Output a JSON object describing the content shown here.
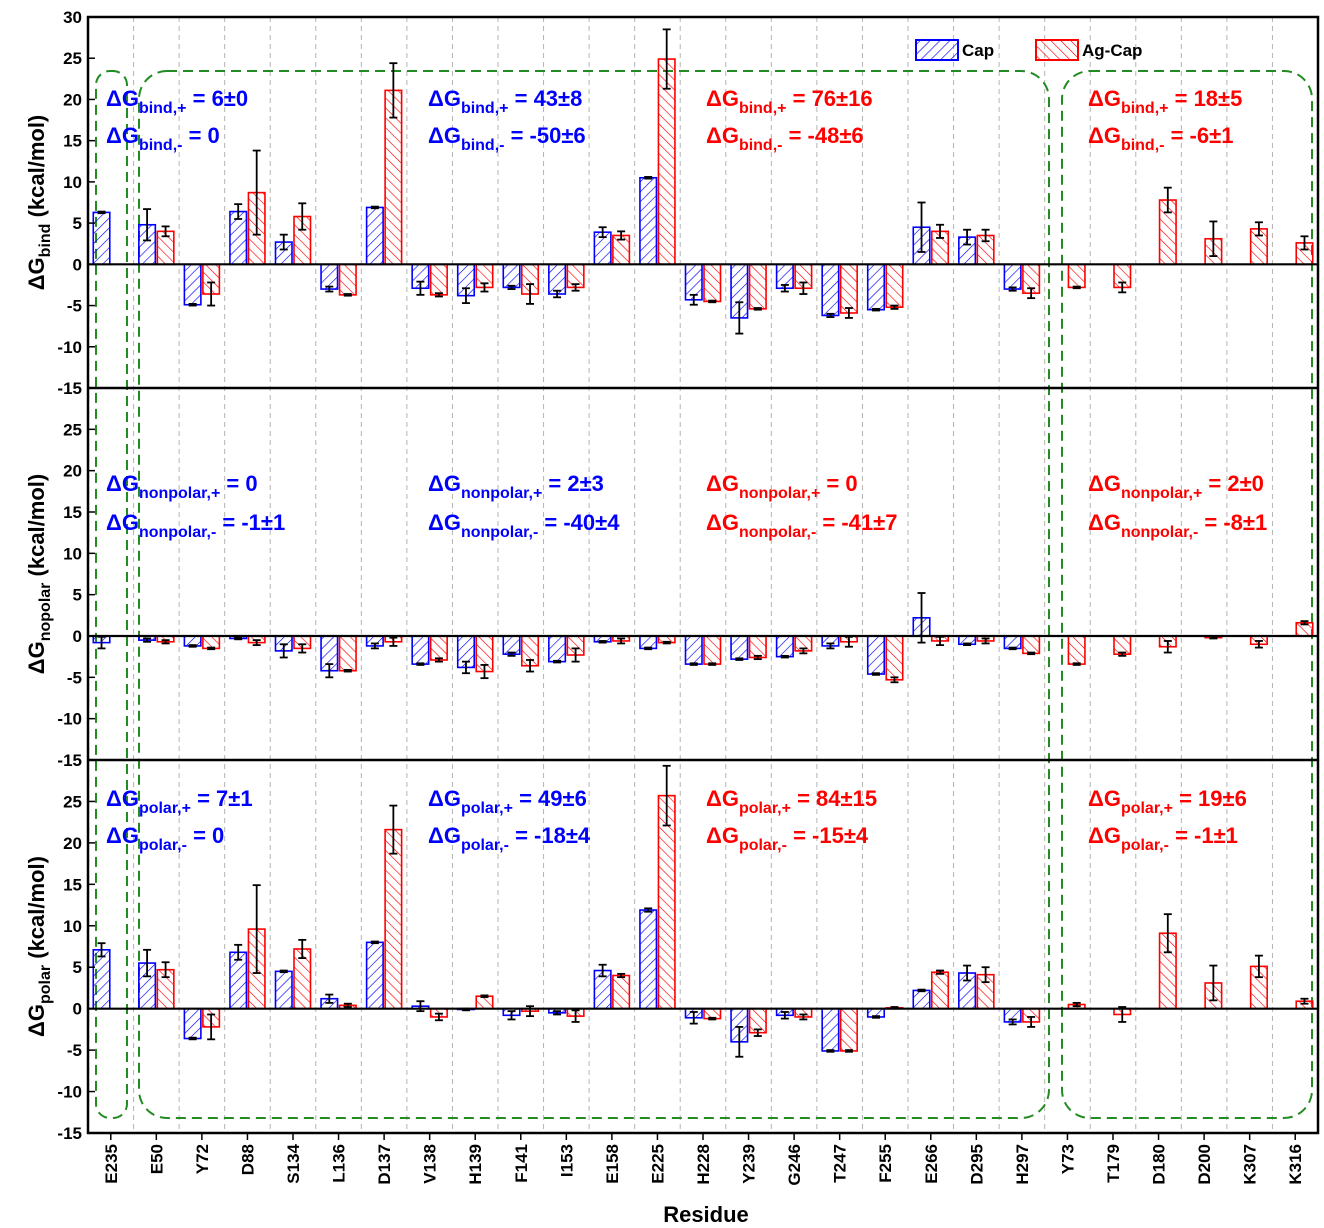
{
  "chart_data": {
    "type": "bar",
    "xlabel": "Residue",
    "categories": [
      "E235",
      "E50",
      "Y72",
      "D88",
      "S134",
      "L136",
      "D137",
      "V138",
      "H139",
      "F141",
      "I153",
      "E158",
      "E225",
      "H228",
      "Y239",
      "G246",
      "T247",
      "F255",
      "E266",
      "D295",
      "H297",
      "Y73",
      "T179",
      "D180",
      "D200",
      "K307",
      "K316"
    ],
    "legend": {
      "placement": "top-right",
      "entries": [
        {
          "name": "Cap",
          "color": "#0000ff"
        },
        {
          "name": "Ag-Cap",
          "color": "#ff0000"
        }
      ]
    },
    "groups": [
      {
        "name": "E235",
        "range": [
          0,
          0
        ]
      },
      {
        "name": "E50–H297",
        "range": [
          1,
          20
        ]
      },
      {
        "name": "Y73–K316",
        "range": [
          21,
          26
        ]
      }
    ],
    "panels": [
      {
        "id": "bind",
        "ylabel_main": "ΔG",
        "ylabel_sub": "bind",
        "ylabel_unit": " (kcal/mol)",
        "ylim": [
          -15,
          30
        ],
        "yticks": [
          -15,
          -10,
          -5,
          0,
          5,
          10,
          15,
          20,
          25,
          30
        ],
        "series": [
          {
            "name": "Cap",
            "values": [
              6.3,
              4.8,
              -4.9,
              6.4,
              2.7,
              -3.0,
              6.9,
              -2.9,
              -3.8,
              -2.8,
              -3.6,
              3.9,
              10.5,
              -4.3,
              -6.5,
              -2.9,
              -6.2,
              -5.5,
              4.5,
              3.3,
              -3.0,
              null,
              null,
              null,
              null,
              null,
              null
            ],
            "errors": [
              0.1,
              1.9,
              0.1,
              0.9,
              0.9,
              0.3,
              0.1,
              0.8,
              0.9,
              0.2,
              0.4,
              0.6,
              0.1,
              0.6,
              1.9,
              0.4,
              0.2,
              0.1,
              3.0,
              0.9,
              0.2,
              null,
              null,
              null,
              null,
              null,
              null
            ]
          },
          {
            "name": "Ag-Cap",
            "values": [
              null,
              4.0,
              -3.6,
              8.7,
              5.8,
              -3.7,
              21.1,
              -3.7,
              -2.8,
              -3.6,
              -2.8,
              3.5,
              24.9,
              -4.5,
              -5.4,
              -2.9,
              -5.9,
              -5.2,
              4.0,
              3.5,
              -3.5,
              -2.8,
              -2.8,
              7.8,
              3.1,
              4.3,
              2.6
            ],
            "errors": [
              null,
              0.6,
              1.4,
              5.1,
              1.6,
              0.1,
              3.3,
              0.2,
              0.5,
              1.2,
              0.4,
              0.5,
              3.6,
              0.1,
              0.1,
              0.7,
              0.6,
              0.2,
              0.8,
              0.7,
              0.6,
              0.1,
              0.6,
              1.5,
              2.1,
              0.8,
              0.8
            ]
          }
        ],
        "annotations": [
          {
            "main": "ΔG",
            "sub": "bind,+",
            "value": " = 6±0",
            "color": "#0000ff",
            "col": 0,
            "row": 0
          },
          {
            "main": "ΔG",
            "sub": "bind,-",
            "value": " = 0",
            "color": "#0000ff",
            "col": 0,
            "row": 1
          },
          {
            "main": "ΔG",
            "sub": "bind,+",
            "value": " = 43±8",
            "color": "#0000ff",
            "col": 1,
            "row": 0
          },
          {
            "main": "ΔG",
            "sub": "bind,-",
            "value": " = -50±6",
            "color": "#0000ff",
            "col": 1,
            "row": 1
          },
          {
            "main": "ΔG",
            "sub": "bind,+",
            "value": " = 76±16",
            "color": "#ff0000",
            "col": 2,
            "row": 0
          },
          {
            "main": "ΔG",
            "sub": "bind,-",
            "value": " = -48±6",
            "color": "#ff0000",
            "col": 2,
            "row": 1
          },
          {
            "main": "ΔG",
            "sub": "bind,+",
            "value": " = 18±5",
            "color": "#ff0000",
            "col": 3,
            "row": 0
          },
          {
            "main": "ΔG",
            "sub": "bind,-",
            "value": " = -6±1",
            "color": "#ff0000",
            "col": 3,
            "row": 1
          }
        ]
      },
      {
        "id": "nonpolar",
        "ylabel_main": "ΔG",
        "ylabel_sub": "nopolar",
        "ylabel_unit": " (kcal/mol)",
        "ylim": [
          -15,
          30
        ],
        "yticks": [
          -15,
          -10,
          -5,
          0,
          5,
          10,
          15,
          20,
          25
        ],
        "series": [
          {
            "name": "Cap",
            "values": [
              -0.8,
              -0.5,
              -1.2,
              -0.3,
              -1.8,
              -4.2,
              -1.2,
              -3.4,
              -3.8,
              -2.2,
              -3.1,
              -0.7,
              -1.5,
              -3.4,
              -2.8,
              -2.5,
              -1.2,
              -4.6,
              2.2,
              -1.0,
              -1.5,
              null,
              null,
              null,
              null,
              null,
              null
            ],
            "errors": [
              0.7,
              0.2,
              0.1,
              0.1,
              0.8,
              0.8,
              0.3,
              0.1,
              0.7,
              0.2,
              0.1,
              0.1,
              0.1,
              0.1,
              0.1,
              0.1,
              0.3,
              0.1,
              3.0,
              0.1,
              0.1,
              null,
              null,
              null,
              null,
              null,
              null
            ]
          },
          {
            "name": "Ag-Cap",
            "values": [
              null,
              -0.7,
              -1.5,
              -0.8,
              -1.5,
              -4.2,
              -0.7,
              -2.9,
              -4.3,
              -3.6,
              -2.3,
              -0.6,
              -0.8,
              -3.4,
              -2.6,
              -1.8,
              -0.7,
              -5.3,
              -0.6,
              -0.6,
              -2.1,
              -3.4,
              -2.2,
              -1.3,
              -0.2,
              -1.0,
              1.6
            ],
            "errors": [
              null,
              0.2,
              0.1,
              0.3,
              0.5,
              0.1,
              0.5,
              0.2,
              0.8,
              0.7,
              0.8,
              0.3,
              0.1,
              0.1,
              0.2,
              0.3,
              0.6,
              0.3,
              0.5,
              0.3,
              0.1,
              0.1,
              0.2,
              0.7,
              0.1,
              0.4,
              0.2
            ]
          }
        ],
        "annotations": [
          {
            "main": "ΔG",
            "sub": "nonpolar,+",
            "value": " = 0",
            "color": "#0000ff",
            "col": 0,
            "row": 0
          },
          {
            "main": "ΔG",
            "sub": "nonpolar,-",
            "value": " = -1±1",
            "color": "#0000ff",
            "col": 0,
            "row": 1
          },
          {
            "main": "ΔG",
            "sub": "nonpolar,+",
            "value": " = 2±3",
            "color": "#0000ff",
            "col": 1,
            "row": 0
          },
          {
            "main": "ΔG",
            "sub": "nonpolar,-",
            "value": " = -40±4",
            "color": "#0000ff",
            "col": 1,
            "row": 1
          },
          {
            "main": "ΔG",
            "sub": "nonpolar,+",
            "value": " = 0",
            "color": "#ff0000",
            "col": 2,
            "row": 0
          },
          {
            "main": "ΔG",
            "sub": "nonpolar,-",
            "value": " = -41±7",
            "color": "#ff0000",
            "col": 2,
            "row": 1
          },
          {
            "main": "ΔG",
            "sub": "nonpolar,+",
            "value": " = 2±0",
            "color": "#ff0000",
            "col": 3,
            "row": 0
          },
          {
            "main": "ΔG",
            "sub": "nonpolar,-",
            "value": " = -8±1",
            "color": "#ff0000",
            "col": 3,
            "row": 1
          }
        ]
      },
      {
        "id": "polar",
        "ylabel_main": "ΔG",
        "ylabel_sub": "polar",
        "ylabel_unit": " (kcal/mol)",
        "ylim": [
          -15,
          30
        ],
        "yticks": [
          -15,
          -10,
          -5,
          0,
          5,
          10,
          15,
          20,
          25
        ],
        "series": [
          {
            "name": "Cap",
            "values": [
              7.1,
              5.5,
              -3.6,
              6.8,
              4.5,
              1.2,
              8.0,
              0.3,
              -0.1,
              -0.8,
              -0.5,
              4.6,
              11.9,
              -1.1,
              -4.0,
              -0.8,
              -5.1,
              -1.0,
              2.2,
              4.3,
              -1.6,
              null,
              null,
              null,
              null,
              null,
              null
            ],
            "errors": [
              0.8,
              1.6,
              0.1,
              0.9,
              0.1,
              0.5,
              0.1,
              0.6,
              0.1,
              0.5,
              0.2,
              0.7,
              0.2,
              0.7,
              1.8,
              0.4,
              0.1,
              0.1,
              0.1,
              0.9,
              0.3,
              null,
              null,
              null,
              null,
              null,
              null
            ]
          },
          {
            "name": "Ag-Cap",
            "values": [
              null,
              4.7,
              -2.2,
              9.6,
              7.2,
              0.4,
              21.6,
              -1.0,
              1.5,
              -0.3,
              -0.9,
              4.0,
              25.7,
              -1.2,
              -2.9,
              -1.0,
              -5.1,
              0.1,
              4.4,
              4.1,
              -1.6,
              0.5,
              -0.7,
              9.1,
              3.1,
              5.1,
              0.9
            ],
            "errors": [
              null,
              0.9,
              1.5,
              5.3,
              1.1,
              0.2,
              2.9,
              0.4,
              0.1,
              0.6,
              0.7,
              0.2,
              3.6,
              0.1,
              0.4,
              0.3,
              0.1,
              0.1,
              0.2,
              0.9,
              0.6,
              0.2,
              0.9,
              2.3,
              2.1,
              1.3,
              0.3
            ]
          }
        ],
        "annotations": [
          {
            "main": "ΔG",
            "sub": "polar,+",
            "value": " = 7±1",
            "color": "#0000ff",
            "col": 0,
            "row": 0
          },
          {
            "main": "ΔG",
            "sub": "polar,-",
            "value": " = 0",
            "color": "#0000ff",
            "col": 0,
            "row": 1
          },
          {
            "main": "ΔG",
            "sub": "polar,+",
            "value": " = 49±6",
            "color": "#0000ff",
            "col": 1,
            "row": 0
          },
          {
            "main": "ΔG",
            "sub": "polar,-",
            "value": " = -18±4",
            "color": "#0000ff",
            "col": 1,
            "row": 1
          },
          {
            "main": "ΔG",
            "sub": "polar,+",
            "value": " = 84±15",
            "color": "#ff0000",
            "col": 2,
            "row": 0
          },
          {
            "main": "ΔG",
            "sub": "polar,-",
            "value": " = -15±4",
            "color": "#ff0000",
            "col": 2,
            "row": 1
          },
          {
            "main": "ΔG",
            "sub": "polar,+",
            "value": " = 19±6",
            "color": "#ff0000",
            "col": 3,
            "row": 0
          },
          {
            "main": "ΔG",
            "sub": "polar,-",
            "value": " = -1±1",
            "color": "#ff0000",
            "col": 3,
            "row": 1
          }
        ]
      }
    ],
    "colors": {
      "cap": "#0000ff",
      "agcap": "#ff0000",
      "group_box": "#228b22",
      "grid": "#b4b4b4"
    }
  }
}
